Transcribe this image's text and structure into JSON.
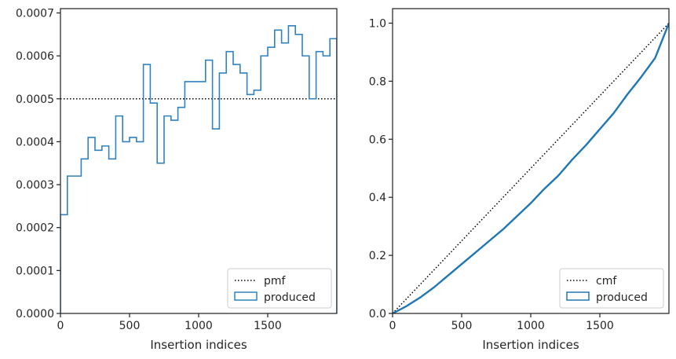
{
  "chart_data": [
    {
      "type": "histogram-step",
      "xlabel": "Insertion indices",
      "ylabel": "",
      "xlim": [
        0,
        2000
      ],
      "ylim": [
        0,
        0.00071
      ],
      "x_ticks": [
        0,
        500,
        1000,
        1500
      ],
      "x_tick_labels": [
        "0",
        "500",
        "1000",
        "1500"
      ],
      "y_ticks": [
        0,
        0.0001,
        0.0002,
        0.0003,
        0.0004,
        0.0005,
        0.0006,
        0.0007
      ],
      "y_tick_labels": [
        "0.0000",
        "0.0001",
        "0.0002",
        "0.0003",
        "0.0004",
        "0.0005",
        "0.0006",
        "0.0007"
      ],
      "legend_position": "lower-right",
      "reference": {
        "name": "pmf",
        "style": "dotted",
        "color": "#000000",
        "y": 0.0005
      },
      "series": [
        {
          "name": "produced",
          "color": "#3182bd",
          "bin_edges": [
            0,
            50,
            150,
            200,
            250,
            300,
            350,
            400,
            450,
            500,
            550,
            600,
            650,
            700,
            750,
            800,
            850,
            900,
            1000,
            1050,
            1100,
            1150,
            1200,
            1250,
            1300,
            1350,
            1400,
            1450,
            1500,
            1550,
            1600,
            1650,
            1700,
            1750,
            1800,
            1850,
            1900,
            1950,
            2000
          ],
          "values": [
            0.00023,
            0.00032,
            0.00036,
            0.00041,
            0.00038,
            0.00039,
            0.00036,
            0.00046,
            0.0004,
            0.00041,
            0.0004,
            0.00058,
            0.00049,
            0.00035,
            0.00046,
            0.00045,
            0.00048,
            0.00054,
            0.00054,
            0.00059,
            0.00043,
            0.00056,
            0.00061,
            0.00058,
            0.00056,
            0.00051,
            0.00052,
            0.0006,
            0.00062,
            0.00066,
            0.00063,
            0.00067,
            0.00065,
            0.0006,
            0.0005,
            0.00061,
            0.0006,
            0.00064
          ]
        }
      ]
    },
    {
      "type": "line",
      "xlabel": "Insertion indices",
      "ylabel": "",
      "xlim": [
        0,
        2000
      ],
      "ylim": [
        0,
        1.05
      ],
      "x_ticks": [
        0,
        500,
        1000,
        1500
      ],
      "x_tick_labels": [
        "0",
        "500",
        "1000",
        "1500"
      ],
      "y_ticks": [
        0,
        0.2,
        0.4,
        0.6,
        0.8,
        1.0
      ],
      "y_tick_labels": [
        "0.0",
        "0.2",
        "0.4",
        "0.6",
        "0.8",
        "1.0"
      ],
      "legend_position": "lower-right",
      "reference": {
        "name": "cmf",
        "style": "dotted",
        "color": "#000000",
        "x": [
          0,
          2000
        ],
        "y": [
          0,
          1
        ]
      },
      "series": [
        {
          "name": "produced",
          "color": "#1f77b4",
          "x": [
            0,
            100,
            200,
            300,
            400,
            500,
            600,
            700,
            800,
            900,
            1000,
            1100,
            1200,
            1300,
            1400,
            1500,
            1600,
            1700,
            1800,
            1900,
            2000
          ],
          "y": [
            0,
            0.025,
            0.055,
            0.09,
            0.13,
            0.17,
            0.21,
            0.25,
            0.29,
            0.335,
            0.38,
            0.43,
            0.475,
            0.53,
            0.58,
            0.635,
            0.69,
            0.755,
            0.815,
            0.88,
            1.0
          ]
        }
      ]
    }
  ]
}
